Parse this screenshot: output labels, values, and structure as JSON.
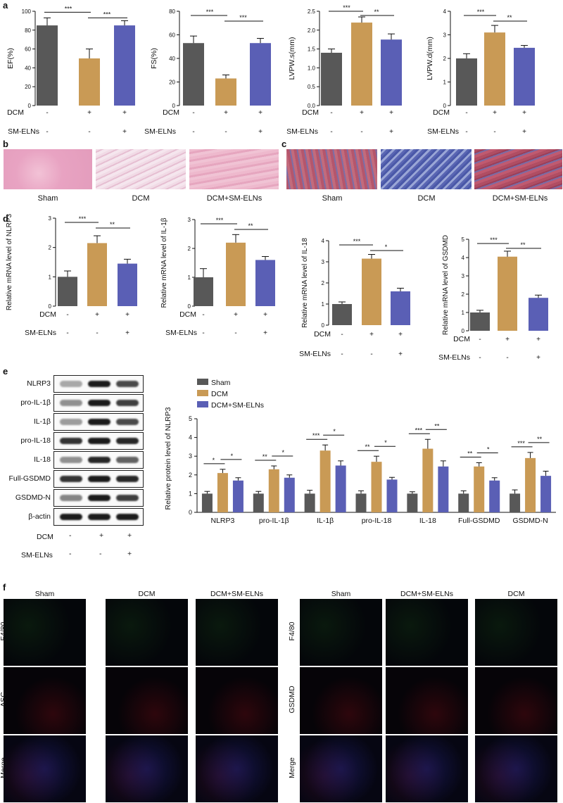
{
  "panel_labels": {
    "a": "a",
    "b": "b",
    "c": "c",
    "d": "d",
    "e": "e",
    "f": "f"
  },
  "colors": {
    "sham": "#585858",
    "dcm": "#c99a55",
    "treated": "#5a5fb5"
  },
  "treatment_rows": {
    "dcm_label": "DCM",
    "sm_label": "SM-ELNs",
    "dcm_signs": [
      "-",
      "+",
      "+"
    ],
    "sm_signs": [
      "-",
      "-",
      "+"
    ]
  },
  "chart_data": [
    {
      "id": "ef",
      "type": "bar",
      "ylabel": "EF(%)",
      "ylim": [
        0,
        100
      ],
      "yticks": [
        0,
        20,
        40,
        60,
        80,
        100
      ],
      "values": [
        85,
        50,
        85
      ],
      "errors": [
        8,
        10,
        5
      ],
      "sig": [
        "***",
        "***"
      ]
    },
    {
      "id": "fs",
      "type": "bar",
      "ylabel": "FS(%)",
      "ylim": [
        0,
        80
      ],
      "yticks": [
        0,
        20,
        40,
        60,
        80
      ],
      "values": [
        53,
        23,
        53
      ],
      "errors": [
        6,
        3,
        4
      ],
      "sig": [
        "***",
        "***"
      ]
    },
    {
      "id": "lvpws",
      "type": "bar",
      "ylabel": "LVPW.s(mm)",
      "ylim": [
        0,
        2.5
      ],
      "yticks": [
        0.0,
        0.5,
        1.0,
        1.5,
        2.0,
        2.5
      ],
      "values": [
        1.4,
        2.2,
        1.75
      ],
      "errors": [
        0.1,
        0.15,
        0.15
      ],
      "sig": [
        "***",
        "**"
      ]
    },
    {
      "id": "lvpwd",
      "type": "bar",
      "ylabel": "LVPW.d(mm)",
      "ylim": [
        0,
        4
      ],
      "yticks": [
        0,
        1,
        2,
        3,
        4
      ],
      "values": [
        2.0,
        3.1,
        2.45
      ],
      "errors": [
        0.2,
        0.3,
        0.1
      ],
      "sig": [
        "***",
        "**"
      ]
    },
    {
      "id": "nlrp3",
      "type": "bar",
      "ylabel": "Relative mRNA level of NLRP3",
      "ylim": [
        0,
        3
      ],
      "yticks": [
        0,
        1,
        2,
        3
      ],
      "values": [
        1.0,
        2.15,
        1.45
      ],
      "errors": [
        0.2,
        0.25,
        0.15
      ],
      "sig": [
        "***",
        "**"
      ]
    },
    {
      "id": "il1b",
      "type": "bar",
      "ylabel": "Relative mRNA level of IL-1β",
      "ylim": [
        0,
        3
      ],
      "yticks": [
        0,
        1,
        2,
        3
      ],
      "values": [
        1.0,
        2.2,
        1.6
      ],
      "errors": [
        0.3,
        0.28,
        0.12
      ],
      "sig": [
        "***",
        "**"
      ]
    },
    {
      "id": "il18",
      "type": "bar",
      "ylabel": "Relative mRNA level of IL-18",
      "ylim": [
        0,
        4
      ],
      "yticks": [
        0,
        1,
        2,
        3,
        4
      ],
      "values": [
        1.0,
        3.15,
        1.6
      ],
      "errors": [
        0.1,
        0.2,
        0.15
      ],
      "sig": [
        "***",
        "*"
      ]
    },
    {
      "id": "gsdmd",
      "type": "bar",
      "ylabel": "Relative mRNA level of GSDMD",
      "ylim": [
        0,
        5
      ],
      "yticks": [
        0,
        1,
        2,
        3,
        4,
        5
      ],
      "values": [
        1.0,
        4.05,
        1.8
      ],
      "errors": [
        0.12,
        0.3,
        0.15
      ],
      "sig": [
        "***",
        "**"
      ]
    },
    {
      "id": "protein",
      "type": "bar",
      "ylabel": "Relative protein level of NLRP3",
      "ylim": [
        0,
        5
      ],
      "yticks": [
        0,
        1,
        2,
        3,
        4,
        5
      ],
      "categories": [
        "NLRP3",
        "pro-IL-1β",
        "IL-1β",
        "pro-IL-18",
        "IL-18",
        "Full-GSDMD",
        "GSDMD-N"
      ],
      "series": [
        {
          "name": "Sham",
          "values": [
            1.0,
            1.0,
            1.0,
            1.0,
            1.0,
            1.0,
            1.0
          ],
          "errors": [
            0.12,
            0.12,
            0.18,
            0.15,
            0.1,
            0.15,
            0.2
          ]
        },
        {
          "name": "DCM",
          "values": [
            2.1,
            2.3,
            3.3,
            2.7,
            3.4,
            2.45,
            2.9
          ],
          "errors": [
            0.2,
            0.18,
            0.3,
            0.3,
            0.5,
            0.2,
            0.3
          ]
        },
        {
          "name": "DCM+SM-ELNs",
          "values": [
            1.7,
            1.85,
            2.5,
            1.75,
            2.45,
            1.7,
            1.95
          ],
          "errors": [
            0.15,
            0.15,
            0.25,
            0.12,
            0.3,
            0.15,
            0.25
          ]
        }
      ],
      "sig": [
        [
          "*",
          "*"
        ],
        [
          "**",
          "*"
        ],
        [
          "***",
          "*"
        ],
        [
          "**",
          "*"
        ],
        [
          "***",
          "**"
        ],
        [
          "**",
          "*"
        ],
        [
          "***",
          "**"
        ]
      ]
    }
  ],
  "panel_b": {
    "captions": [
      "Sham",
      "DCM",
      "DCM+SM-ELNs"
    ]
  },
  "panel_c": {
    "captions": [
      "Sham",
      "DCM",
      "DCM+SM-ELNs"
    ]
  },
  "western": {
    "bands": [
      "NLRP3",
      "pro-IL-1β",
      "IL-1β",
      "pro-IL-18",
      "IL-18",
      "Full-GSDMD",
      "GSDMD-N",
      "β-actin"
    ],
    "dcm_label": "DCM",
    "sm_label": "SM-ELNs",
    "dcm_signs": [
      "-",
      "+",
      "+"
    ],
    "sm_signs": [
      "-",
      "-",
      "+"
    ]
  },
  "panel_f": {
    "left_cols": [
      "Sham",
      "DCM",
      "DCM+SM-ELNs"
    ],
    "right_cols": [
      "Sham",
      "DCM+SM-ELNs",
      "DCM"
    ],
    "left_rows": [
      "F4/80",
      "ASC",
      "Merge"
    ],
    "right_rows": [
      "F4/80",
      "GSDMD",
      "Merge"
    ]
  }
}
